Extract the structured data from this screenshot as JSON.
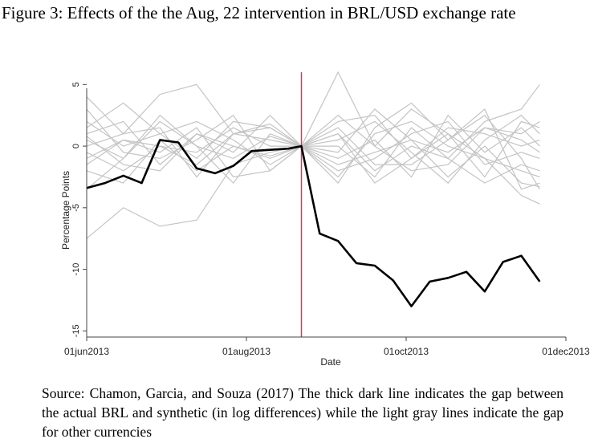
{
  "figure_title": "Figure 3: Effects of the the Aug, 22 intervention in BRL/USD exchange rate",
  "caption": "Source: Chamon, Garcia, and Souza (2017) The thick dark line indicates the gap between the actual BRL and synthetic (in log differences) while the light gray lines indicate the gap for other currencies",
  "chart_data": {
    "type": "line",
    "title": "",
    "xlabel": "Date",
    "ylabel": "Percentage Points",
    "x_ticks": [
      "01jun2013",
      "01aug2013",
      "01oct2013",
      "01dec2013"
    ],
    "y_ticks": [
      5,
      0,
      -5,
      -10,
      -15
    ],
    "ylim": [
      -15.5,
      6
    ],
    "xlim": [
      "2013-06-01",
      "2013-12-01"
    ],
    "intervention_date": "2013-08-22",
    "grid": false,
    "colors": {
      "brl": "#000000",
      "others": "#c4c4c4",
      "intervention": "#e8305a",
      "axis": "#444444"
    },
    "brl_series": {
      "x": [
        "2013-06-01",
        "2013-06-08",
        "2013-06-15",
        "2013-06-22",
        "2013-06-29",
        "2013-07-06",
        "2013-07-13",
        "2013-07-20",
        "2013-07-27",
        "2013-08-03",
        "2013-08-10",
        "2013-08-17",
        "2013-08-22",
        "2013-08-29",
        "2013-09-05",
        "2013-09-12",
        "2013-09-19",
        "2013-09-26",
        "2013-10-03",
        "2013-10-10",
        "2013-10-17",
        "2013-10-24",
        "2013-10-31",
        "2013-11-07",
        "2013-11-14",
        "2013-11-21"
      ],
      "y": [
        -3.4,
        -3.0,
        -2.4,
        -3.0,
        0.5,
        0.3,
        -1.8,
        -2.2,
        -1.6,
        -0.4,
        -0.3,
        -0.2,
        0.0,
        -7.1,
        -7.7,
        -9.5,
        -9.7,
        -10.9,
        -13.0,
        -11.0,
        -10.7,
        -10.2,
        -11.8,
        -9.4,
        -8.9,
        -11.0
      ]
    },
    "other_series": [
      {
        "x": [
          "2013-06-01",
          "2013-06-15",
          "2013-06-29",
          "2013-07-13",
          "2013-07-27",
          "2013-08-10",
          "2013-08-22",
          "2013-09-05",
          "2013-09-19",
          "2013-10-03",
          "2013-10-17",
          "2013-10-31",
          "2013-11-14",
          "2013-11-21"
        ],
        "y": [
          4.0,
          1.0,
          4.2,
          5.0,
          1.0,
          1.5,
          0.0,
          1.0,
          -2.0,
          0.0,
          -1.0,
          2.0,
          3.0,
          5.0
        ]
      },
      {
        "x": [
          "2013-06-01",
          "2013-06-15",
          "2013-06-29",
          "2013-07-13",
          "2013-07-27",
          "2013-08-10",
          "2013-08-22",
          "2013-09-05",
          "2013-09-19",
          "2013-10-03",
          "2013-10-17",
          "2013-10-31",
          "2013-11-14",
          "2013-11-21"
        ],
        "y": [
          -7.5,
          -5.0,
          -6.5,
          -6.0,
          -1.5,
          -0.5,
          0.0,
          6.0,
          0.0,
          3.0,
          1.0,
          -1.0,
          -4.0,
          -4.7
        ]
      },
      {
        "x": [
          "2013-06-01",
          "2013-06-15",
          "2013-06-29",
          "2013-07-13",
          "2013-07-27",
          "2013-08-10",
          "2013-08-22",
          "2013-09-05",
          "2013-09-19",
          "2013-10-03",
          "2013-10-17",
          "2013-10-31",
          "2013-11-14",
          "2013-11-21"
        ],
        "y": [
          1.5,
          3.5,
          1.0,
          -1.0,
          2.0,
          1.5,
          0.0,
          -3.0,
          1.5,
          3.5,
          0.5,
          2.5,
          -1.0,
          -3.5
        ]
      },
      {
        "x": [
          "2013-06-01",
          "2013-06-15",
          "2013-06-29",
          "2013-07-13",
          "2013-07-27",
          "2013-08-10",
          "2013-08-22",
          "2013-09-05",
          "2013-09-19",
          "2013-10-03",
          "2013-10-17",
          "2013-10-31",
          "2013-11-14",
          "2013-11-21"
        ],
        "y": [
          0.5,
          -1.0,
          2.5,
          0.0,
          -1.0,
          0.8,
          0.0,
          2.0,
          2.5,
          -1.0,
          1.0,
          -2.5,
          2.0,
          1.5
        ]
      },
      {
        "x": [
          "2013-06-01",
          "2013-06-15",
          "2013-06-29",
          "2013-07-13",
          "2013-07-27",
          "2013-08-10",
          "2013-08-22",
          "2013-09-05",
          "2013-09-19",
          "2013-10-03",
          "2013-10-17",
          "2013-10-31",
          "2013-11-14",
          "2013-11-21"
        ],
        "y": [
          -1.0,
          0.5,
          -0.5,
          1.5,
          -2.5,
          -2.0,
          0.0,
          -1.5,
          -0.5,
          0.5,
          -2.5,
          0.0,
          -3.0,
          -3.3
        ]
      },
      {
        "x": [
          "2013-06-01",
          "2013-06-15",
          "2013-06-29",
          "2013-07-13",
          "2013-07-27",
          "2013-08-10",
          "2013-08-22",
          "2013-09-05",
          "2013-09-19",
          "2013-10-03",
          "2013-10-17",
          "2013-10-31",
          "2013-11-14",
          "2013-11-21"
        ],
        "y": [
          2.0,
          0.0,
          1.0,
          2.0,
          0.5,
          -1.5,
          0.0,
          1.0,
          -3.0,
          -1.0,
          1.5,
          1.0,
          0.0,
          0.5
        ]
      },
      {
        "x": [
          "2013-06-01",
          "2013-06-15",
          "2013-06-29",
          "2013-07-13",
          "2013-07-27",
          "2013-08-10",
          "2013-08-22",
          "2013-09-05",
          "2013-09-19",
          "2013-10-03",
          "2013-10-17",
          "2013-10-31",
          "2013-11-14",
          "2013-11-21"
        ],
        "y": [
          -0.5,
          -2.0,
          0.0,
          -0.5,
          1.5,
          0.0,
          0.0,
          2.5,
          0.0,
          -2.0,
          -1.5,
          1.5,
          1.0,
          2.0
        ]
      },
      {
        "x": [
          "2013-06-01",
          "2013-06-15",
          "2013-06-29",
          "2013-07-13",
          "2013-07-27",
          "2013-08-10",
          "2013-08-22",
          "2013-09-05",
          "2013-09-19",
          "2013-10-03",
          "2013-10-17",
          "2013-10-31",
          "2013-11-14",
          "2013-11-21"
        ],
        "y": [
          1.0,
          2.0,
          -1.5,
          1.0,
          -0.5,
          2.5,
          0.0,
          -2.0,
          -1.0,
          1.0,
          2.0,
          -1.5,
          -0.5,
          -1.0
        ]
      },
      {
        "x": [
          "2013-06-01",
          "2013-06-15",
          "2013-06-29",
          "2013-07-13",
          "2013-07-27",
          "2013-08-10",
          "2013-08-22",
          "2013-09-05",
          "2013-09-19",
          "2013-10-03",
          "2013-10-17",
          "2013-10-31",
          "2013-11-14",
          "2013-11-21"
        ],
        "y": [
          -2.0,
          -3.0,
          0.5,
          -2.0,
          0.0,
          -1.0,
          0.0,
          0.5,
          2.0,
          -0.5,
          -3.0,
          0.5,
          2.5,
          1.0
        ]
      },
      {
        "x": [
          "2013-06-01",
          "2013-06-15",
          "2013-06-29",
          "2013-07-13",
          "2013-07-27",
          "2013-08-10",
          "2013-08-22",
          "2013-09-05",
          "2013-09-19",
          "2013-10-03",
          "2013-10-17",
          "2013-10-31",
          "2013-11-14",
          "2013-11-21"
        ],
        "y": [
          0.0,
          1.0,
          1.5,
          -2.5,
          1.0,
          0.5,
          0.0,
          -2.5,
          1.0,
          2.0,
          0.0,
          -1.0,
          -2.0,
          -2.5
        ]
      },
      {
        "x": [
          "2013-06-01",
          "2013-06-15",
          "2013-06-29",
          "2013-07-13",
          "2013-07-27",
          "2013-08-10",
          "2013-08-22",
          "2013-09-05",
          "2013-09-19",
          "2013-10-03",
          "2013-10-17",
          "2013-10-31",
          "2013-11-14",
          "2013-11-21"
        ],
        "y": [
          3.0,
          -0.5,
          -1.0,
          0.5,
          2.5,
          -2.0,
          0.0,
          1.5,
          -1.5,
          -1.5,
          0.5,
          3.0,
          -3.5,
          -3.0
        ]
      },
      {
        "x": [
          "2013-06-01",
          "2013-06-15",
          "2013-06-29",
          "2013-07-13",
          "2013-07-27",
          "2013-08-10",
          "2013-08-22",
          "2013-09-05",
          "2013-09-19",
          "2013-10-03",
          "2013-10-17",
          "2013-10-31",
          "2013-11-14",
          "2013-11-21"
        ],
        "y": [
          -3.5,
          -1.0,
          2.0,
          0.0,
          -3.0,
          1.0,
          0.0,
          -0.5,
          3.0,
          0.5,
          -0.5,
          1.5,
          0.5,
          -0.5
        ]
      },
      {
        "x": [
          "2013-06-01",
          "2013-06-15",
          "2013-06-29",
          "2013-07-13",
          "2013-07-27",
          "2013-08-10",
          "2013-08-22",
          "2013-09-05",
          "2013-09-19",
          "2013-10-03",
          "2013-10-17",
          "2013-10-31",
          "2013-11-14",
          "2013-11-21"
        ],
        "y": [
          0.8,
          -1.5,
          -2.0,
          1.0,
          0.0,
          -0.8,
          0.0,
          -1.0,
          0.5,
          -2.5,
          2.5,
          -0.5,
          1.5,
          0.0
        ]
      },
      {
        "x": [
          "2013-06-01",
          "2013-06-15",
          "2013-06-29",
          "2013-07-13",
          "2013-07-27",
          "2013-08-10",
          "2013-08-22",
          "2013-09-05",
          "2013-09-19",
          "2013-10-03",
          "2013-10-17",
          "2013-10-31",
          "2013-11-14",
          "2013-11-21"
        ],
        "y": [
          -1.5,
          0.5,
          0.0,
          -1.5,
          1.0,
          1.8,
          0.0,
          0.0,
          -2.5,
          1.5,
          -1.0,
          -3.0,
          -1.5,
          -2.0
        ]
      }
    ]
  }
}
